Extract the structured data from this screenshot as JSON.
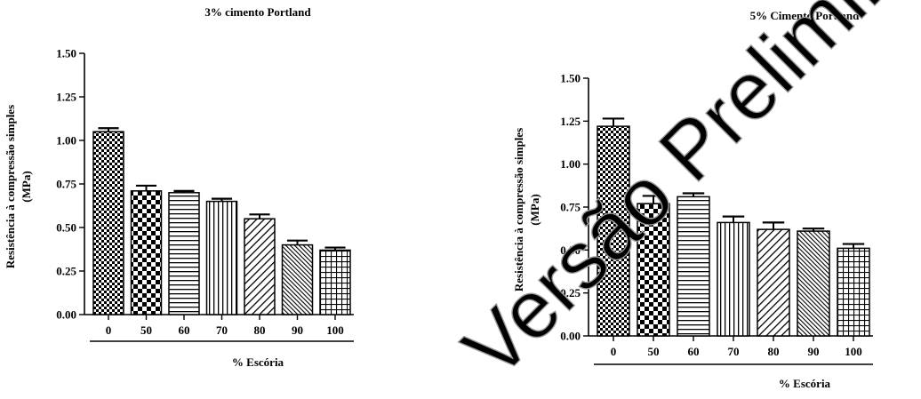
{
  "watermark": {
    "text": "Versão Preliminar"
  },
  "chart_data": [
    {
      "type": "bar",
      "title": "3% cimento Portland",
      "xlabel": "% Escória",
      "ylabel": "Resistência à compressão simples (MPa)",
      "ylabel_lines": [
        "Resistência à compressão simples",
        "(MPa)"
      ],
      "categories": [
        "0",
        "50",
        "60",
        "70",
        "80",
        "90",
        "100"
      ],
      "values": [
        1.05,
        0.71,
        0.7,
        0.65,
        0.55,
        0.4,
        0.37
      ],
      "errors": [
        0.02,
        0.03,
        0.01,
        0.015,
        0.025,
        0.025,
        0.015
      ],
      "patterns": [
        "small-check",
        "big-check",
        "horizontal",
        "vertical",
        "diag-right",
        "diag-dense",
        "grid"
      ],
      "ylim": [
        0,
        1.5
      ],
      "yticks": [
        "0.00",
        "0.25",
        "0.50",
        "0.75",
        "1.00",
        "1.25",
        "1.50"
      ],
      "grid": false,
      "legend": "none"
    },
    {
      "type": "bar",
      "title": "5% Cimento Portland",
      "xlabel": "% Escória",
      "ylabel": "Resistência à compressão simples (MPa)",
      "ylabel_lines": [
        "Resistência à compressão simples",
        "(MPa)"
      ],
      "categories": [
        "0",
        "50",
        "60",
        "70",
        "80",
        "90",
        "100"
      ],
      "values": [
        1.22,
        0.77,
        0.81,
        0.66,
        0.62,
        0.61,
        0.51
      ],
      "errors": [
        0.045,
        0.045,
        0.02,
        0.035,
        0.04,
        0.015,
        0.025
      ],
      "patterns": [
        "small-check",
        "big-check",
        "horizontal",
        "vertical",
        "diag-right",
        "diag-dense",
        "grid"
      ],
      "ylim": [
        0,
        1.5
      ],
      "yticks": [
        "0.00",
        "0.25",
        "0.50",
        "0.75",
        "1.00",
        "1.25",
        "1.50"
      ],
      "grid": false,
      "legend": "none"
    }
  ]
}
